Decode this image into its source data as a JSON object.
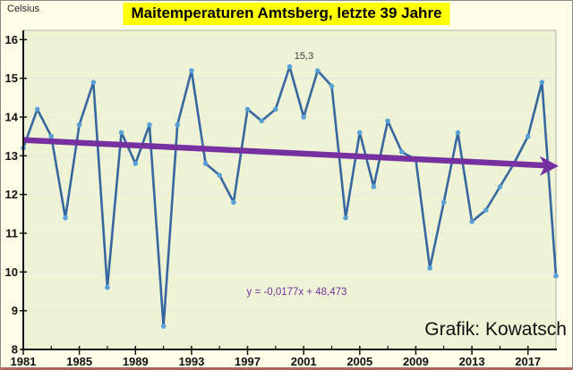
{
  "labels": {
    "credit": "Grafik: Kowatsch"
  },
  "chart_data": {
    "type": "line",
    "title": "Maitemperaturen Amtsberg, letzte 39 Jahre",
    "ylabel": "Celsius",
    "xlabel": "",
    "ylim": [
      8,
      16
    ],
    "grid": "horizontal",
    "legend": "none",
    "years": [
      1981,
      1982,
      1983,
      1984,
      1985,
      1986,
      1987,
      1988,
      1989,
      1990,
      1991,
      1992,
      1993,
      1994,
      1995,
      1996,
      1997,
      1998,
      1999,
      2000,
      2001,
      2002,
      2003,
      2004,
      2005,
      2006,
      2007,
      2008,
      2009,
      2010,
      2011,
      2012,
      2013,
      2014,
      2015,
      2016,
      2017,
      2018,
      2019
    ],
    "values": [
      13.2,
      14.2,
      13.5,
      11.4,
      13.8,
      14.9,
      9.6,
      13.6,
      12.8,
      13.8,
      8.6,
      13.8,
      15.2,
      12.8,
      12.5,
      11.8,
      14.2,
      13.9,
      14.2,
      15.3,
      14.0,
      15.2,
      14.8,
      11.4,
      13.6,
      12.2,
      13.9,
      13.1,
      12.9,
      10.1,
      11.8,
      13.6,
      11.3,
      11.6,
      12.2,
      12.8,
      13.5,
      14.9,
      9.9
    ],
    "y_ticks": [
      8,
      9,
      10,
      11,
      12,
      13,
      14,
      15,
      16
    ],
    "x_major_ticks": [
      1981,
      1985,
      1989,
      1993,
      1997,
      2001,
      2005,
      2009,
      2013,
      2017
    ],
    "x_minor_ticks": [
      1983,
      1987,
      1991,
      1995,
      1999,
      2003,
      2007,
      2011,
      2015
    ],
    "annotation": {
      "x": 2000,
      "y": 15.3,
      "text": "15,3"
    },
    "trendline": {
      "label": "y = -0,0177x + 48,473",
      "slope": -0.0177,
      "intercept": 48.473,
      "style": "arrow"
    },
    "colors": {
      "line": "#36679f",
      "marker": "#58a0d6",
      "trend": "#7630a0",
      "plot_bg": "#eef3d6",
      "outer_bg": "#fdfce6",
      "title_bg": "#ffff00",
      "grid": "#e2ebde",
      "plot_border": "#b3b3a8",
      "axis": "#111111"
    }
  }
}
